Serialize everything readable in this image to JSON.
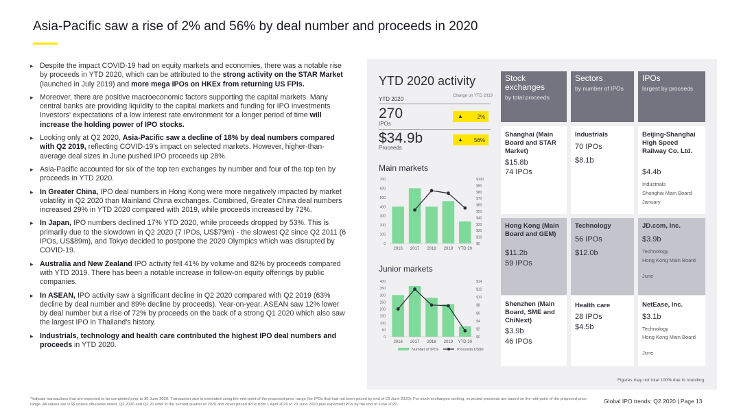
{
  "title": "Asia-Pacific saw a rise of 2% and 56% by deal number and proceeds in 2020",
  "bullets": [
    [
      {
        "t": "Despite the impact COVID-19 had on equity markets and economies, there was a notable rise by proceeds in YTD 2020, which can be attributed to the "
      },
      {
        "t": "strong activity on the STAR Market",
        "b": true
      },
      {
        "t": " (launched in July 2019) and "
      },
      {
        "t": "more mega IPOs on HKEx from returning US FPIs.",
        "b": true
      }
    ],
    [
      {
        "t": "Moreover, there are positive macroeconomic factors supporting the capital markets. Many central banks are providing liquidity to the capital markets and funding for IPO investments. Investors' expectations of a low interest rate environment for a longer period of time "
      },
      {
        "t": "will increase the holding power of IPO stocks.",
        "b": true
      }
    ],
    [
      {
        "t": "Looking only at Q2 2020, "
      },
      {
        "t": "Asia-Pacific saw a decline of 18% by deal numbers compared with Q2 2019,",
        "b": true
      },
      {
        "t": " reflecting COVID-19's impact on selected markets. However, higher-than-average deal sizes in June pushed IPO proceeds up 28%."
      }
    ],
    [
      {
        "t": "Asia-Pacific accounted for six of the top ten exchanges by number and four of the top ten by proceeds in YTD 2020."
      }
    ],
    [
      {
        "t": "In Greater China,",
        "b": true
      },
      {
        "t": " IPO deal numbers in Hong Kong were more negatively impacted by market volatility in Q2 2020 than Mainland China exchanges. Combined, Greater China deal numbers increased 29% in YTD 2020 compared with 2019, while proceeds increased by 72%."
      }
    ],
    [
      {
        "t": "In Japan,",
        "b": true
      },
      {
        "t": " IPO numbers declined 17% YTD 2020, while proceeds dropped by 53%. This is primarily due to the slowdown in Q2 2020 (7 IPOs, US$79m) - the slowest Q2 since Q2 2011 (6 IPOs, US$89m), and Tokyo decided to postpone the 2020 Olympics which was disrupted by COVID-19."
      }
    ],
    [
      {
        "t": "Australia and New Zealand",
        "b": true
      },
      {
        "t": " IPO activity fell 41% by volume and 82% by proceeds compared with YTD 2019. There has been a notable increase in follow-on equity offerings by public companies."
      }
    ],
    [
      {
        "t": "In ASEAN,",
        "b": true
      },
      {
        "t": " IPO activity saw a significant decline in Q2 2020 compared with Q2 2019 (63% decline by deal number and 89% decline by proceeds). Year-on-year, ASEAN saw 12% lower by deal number but a rise of 72% by proceeds on the back of a strong Q1 2020 which also saw the largest IPO in Thailand's history."
      }
    ],
    [
      {
        "t": "Industrials, technology and health care contributed the highest IPO deal numbers and proceeds",
        "b": true
      },
      {
        "t": " in YTD 2020."
      }
    ]
  ],
  "activity": {
    "title": "YTD 2020 activity",
    "ytd_label": "YTD 2020",
    "change_label": "Change on YTD 2019",
    "ipos_value": "270",
    "ipos_label": "IPOs",
    "ipos_change": "2%",
    "proceeds_value": "$34.9b",
    "proceeds_label": "Proceeds",
    "proceeds_change": "56%"
  },
  "chart_data": [
    {
      "type": "bar",
      "title": "Main markets",
      "categories": [
        "2016",
        "2017",
        "2018",
        "2019",
        "YTD 20"
      ],
      "series": [
        {
          "name": "Number of IPOs",
          "values": [
            400,
            600,
            400,
            460,
            240
          ],
          "axis": "left"
        },
        {
          "name": "Proceeds US$b",
          "values": [
            null,
            52,
            82,
            78,
            55
          ],
          "axis": "right",
          "type": "line"
        }
      ],
      "ylim_left": [
        0,
        700
      ],
      "left_ticks": [
        "0",
        "100",
        "200",
        "300",
        "400",
        "500",
        "600",
        "700"
      ],
      "ylim_right": [
        0,
        100
      ],
      "right_ticks": [
        "$0",
        "$10",
        "$20",
        "$30",
        "$40",
        "$50",
        "$60",
        "$70",
        "$80",
        "$90",
        "$100"
      ]
    },
    {
      "type": "bar",
      "title": "Junior markets",
      "categories": [
        "2016",
        "2017",
        "2018",
        "2019",
        "YTD 20"
      ],
      "series": [
        {
          "name": "Number of IPOs",
          "values": [
            300,
            365,
            280,
            235,
            75
          ],
          "axis": "left"
        },
        {
          "name": "Proceeds US$b",
          "values": [
            7.0,
            12.0,
            8.0,
            7.8,
            1.5
          ],
          "axis": "right",
          "type": "line"
        }
      ],
      "ylim_left": [
        0,
        400
      ],
      "left_ticks": [
        "0",
        "50",
        "100",
        "150",
        "200",
        "250",
        "300",
        "350",
        "400"
      ],
      "ylim_right": [
        0,
        14
      ],
      "right_ticks": [
        "$0",
        "$2",
        "$4",
        "$6",
        "$8",
        "$10",
        "$12",
        "$14"
      ],
      "legend": [
        "Number of IPOs",
        "Proceeds US$b"
      ]
    }
  ],
  "table": {
    "headers": [
      {
        "title": "Stock exchanges",
        "sub": "by total proceeds"
      },
      {
        "title": "Sectors",
        "sub": "by number of IPOs"
      },
      {
        "title": "IPOs",
        "sub": "largest by proceeds"
      }
    ],
    "rows": [
      [
        {
          "name": "Shanghai (Main Board and STAR Market)",
          "v1": "$15.8b",
          "v2": "74 IPOs"
        },
        {
          "name": "Industrials",
          "v1": "70 IPOs",
          "v2": "$8.1b"
        },
        {
          "name": "Beijing-Shanghai High Speed Railway Co. Ltd.",
          "v1": "$4.4b",
          "d1": "Industrials",
          "d2": "Shanghai Main Board",
          "d3": "January"
        }
      ],
      [
        {
          "name": "Hong Kong (Main Board and GEM)",
          "v1": "$11.2b",
          "v2": "59 IPOs"
        },
        {
          "name": "Technology",
          "v1": "56 IPOs",
          "v2": "$12.0b"
        },
        {
          "name": "JD.com, Inc.",
          "v1": "$3.9b",
          "d1": "Technology",
          "d2": "Hong Kong Main Board",
          "d3": "June"
        }
      ],
      [
        {
          "name": "Shenzhen (Main Board, SME and ChiNext)",
          "v1": "$3.9b",
          "v2": "46 IPOs"
        },
        {
          "name": "Health care",
          "v1": "28 IPOs",
          "v2": "$4.5b"
        },
        {
          "name": "NetEase, Inc.",
          "v1": "$3.1b",
          "d1": "Technology",
          "d2": "Hong Kong Main Board",
          "d3": "June"
        }
      ]
    ]
  },
  "figure_note": "Figures may not total 100% due to rounding.",
  "footnote": "*Indicate transactions that are expected to be completed prior to 30 June 2020. Transaction size is estimated using the mid-point of the proposed price range (for IPOs that had not been priced by end of 23 June 2020). For stock exchanges ranking, expected proceeds are based on the mid-point of the proposed price range. All values are US$ unless otherwise noted. Q2 2020 and Q2 20 refer to the second quarter of 2020 and cover priced IPOs from 1 April 2020 to 23 June 2020 plus expected IPOs by the end of June 2020.",
  "page_footer": "Global IPO trends: Q2 2020  |  Page 13",
  "colors": {
    "accent": "#ffe600",
    "bar": "#7fd99a",
    "line": "#2e2e38",
    "header": "#747480",
    "grey_cell": "#c4c4cd"
  }
}
